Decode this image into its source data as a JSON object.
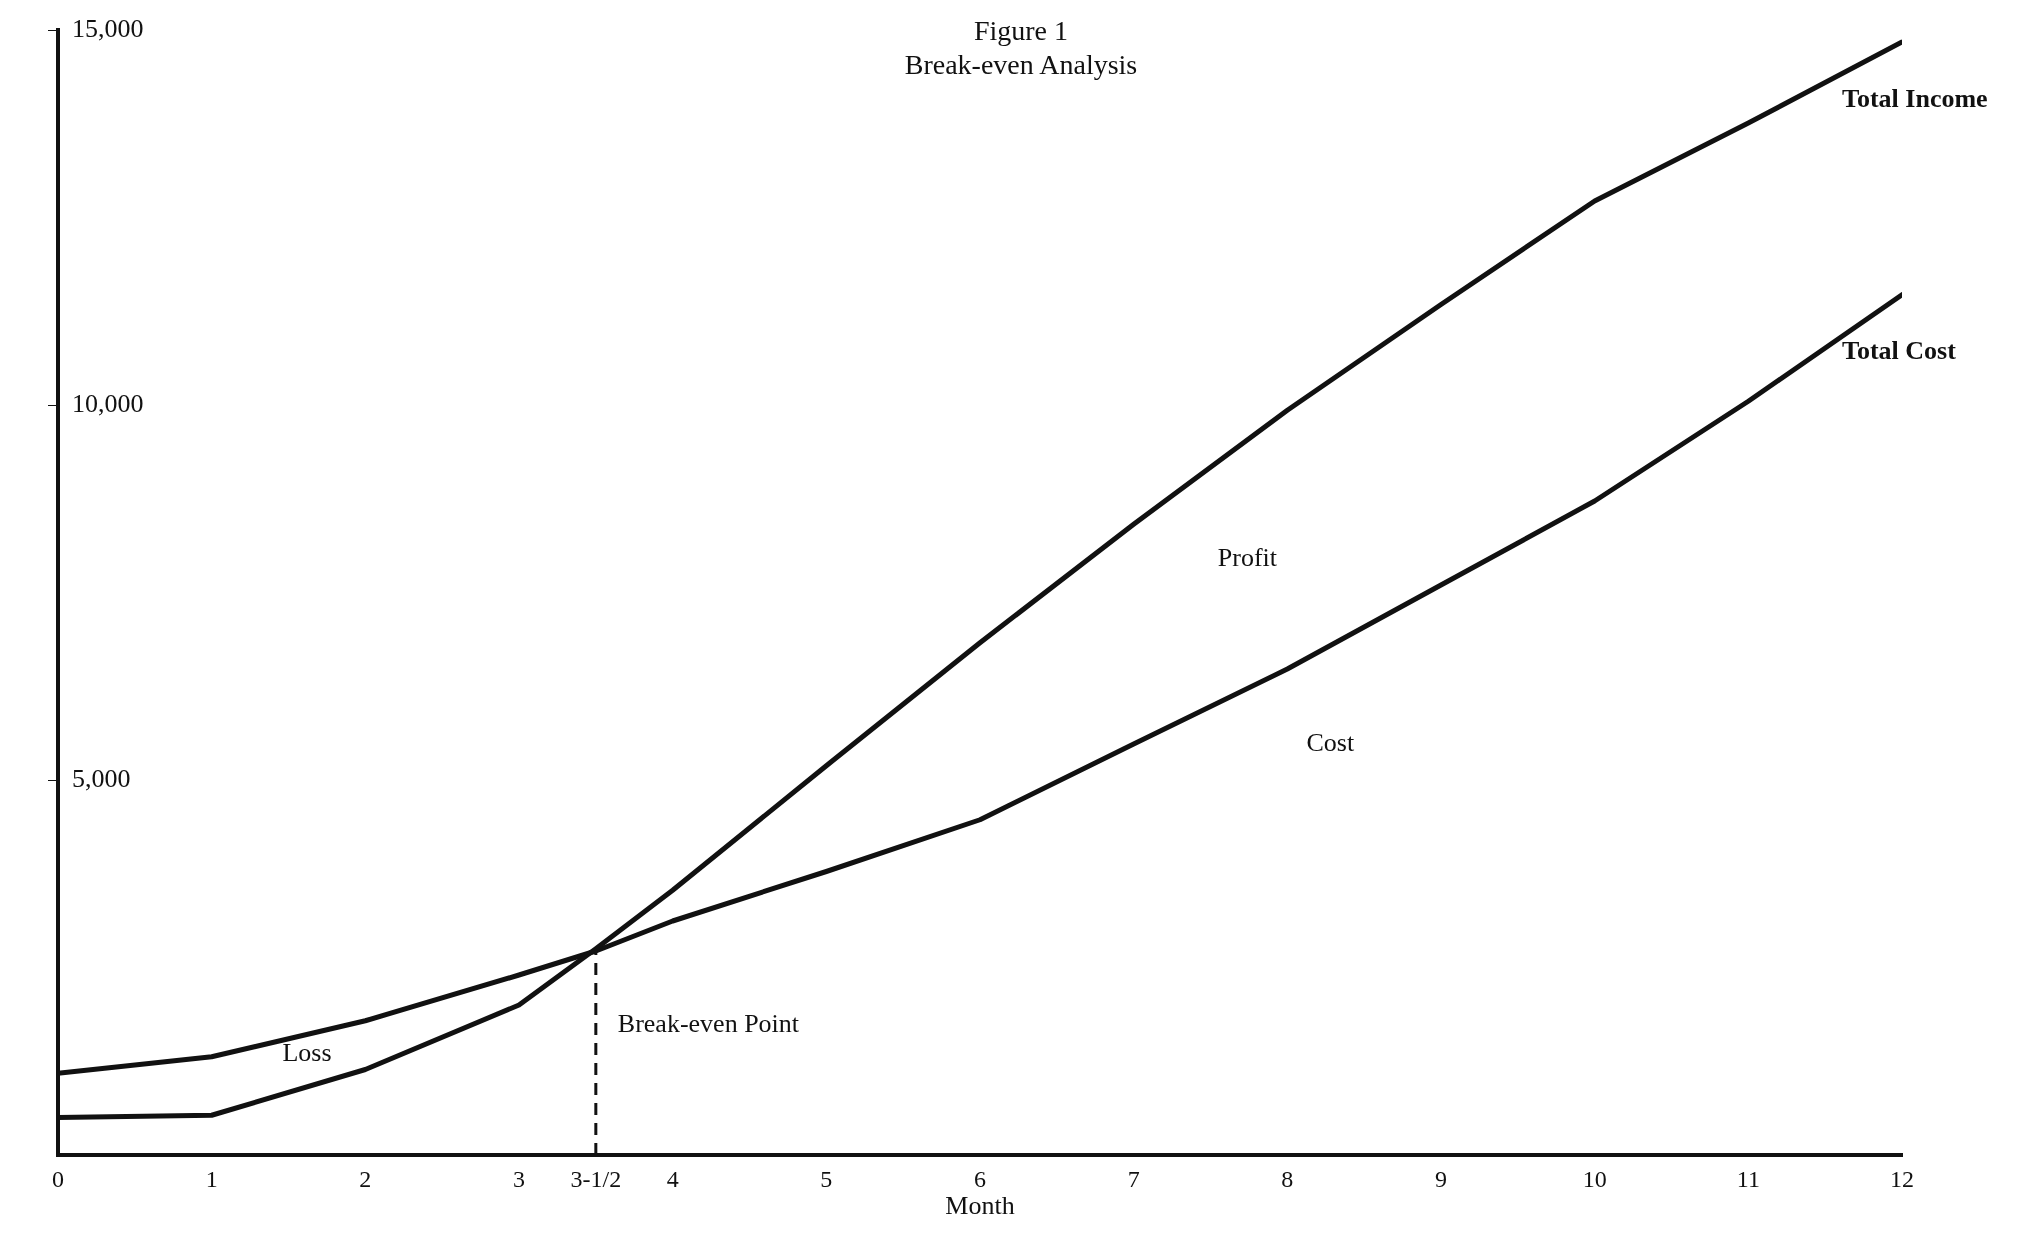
{
  "chart_data": {
    "type": "line",
    "title": "Figure 1",
    "subtitle": "Break-even Analysis",
    "xlabel": "Month",
    "x": [
      0,
      1,
      2,
      3,
      3.5,
      4,
      5,
      6,
      7,
      8,
      9,
      10,
      11,
      12
    ],
    "series": [
      {
        "name": "Total Income",
        "color": "#111111",
        "values": [
          500,
          530,
          1140,
          2000,
          2750,
          3530,
          5190,
          6830,
          8410,
          9930,
          11340,
          12720,
          13760,
          14840
        ]
      },
      {
        "name": "Total Cost",
        "color": "#111111",
        "values": [
          1090,
          1310,
          1790,
          2400,
          2720,
          3120,
          3780,
          4470,
          5480,
          6480,
          7600,
          8720,
          10050,
          11470
        ]
      }
    ],
    "xlim": [
      0,
      12
    ],
    "xticks": [
      0,
      1,
      2,
      3,
      {
        "value": 3.5,
        "label": "3-1/2"
      },
      4,
      5,
      6,
      7,
      8,
      9,
      10,
      11,
      12
    ],
    "ylim": [
      0,
      15000
    ],
    "yticks": [
      {
        "value": 5000,
        "label": "5,000"
      },
      {
        "value": 10000,
        "label": "10,000"
      },
      {
        "value": 15000,
        "label": "15,000"
      }
    ],
    "ref_lines": [
      {
        "axis": "x",
        "value": 3.5,
        "label": "Break-even Point",
        "line_style": "dashed",
        "color": "#111111"
      }
    ],
    "annotations": [
      "Loss",
      "Profit",
      "Cost"
    ],
    "grid": false,
    "legend": false,
    "marker": "none",
    "line_style": "solid"
  }
}
